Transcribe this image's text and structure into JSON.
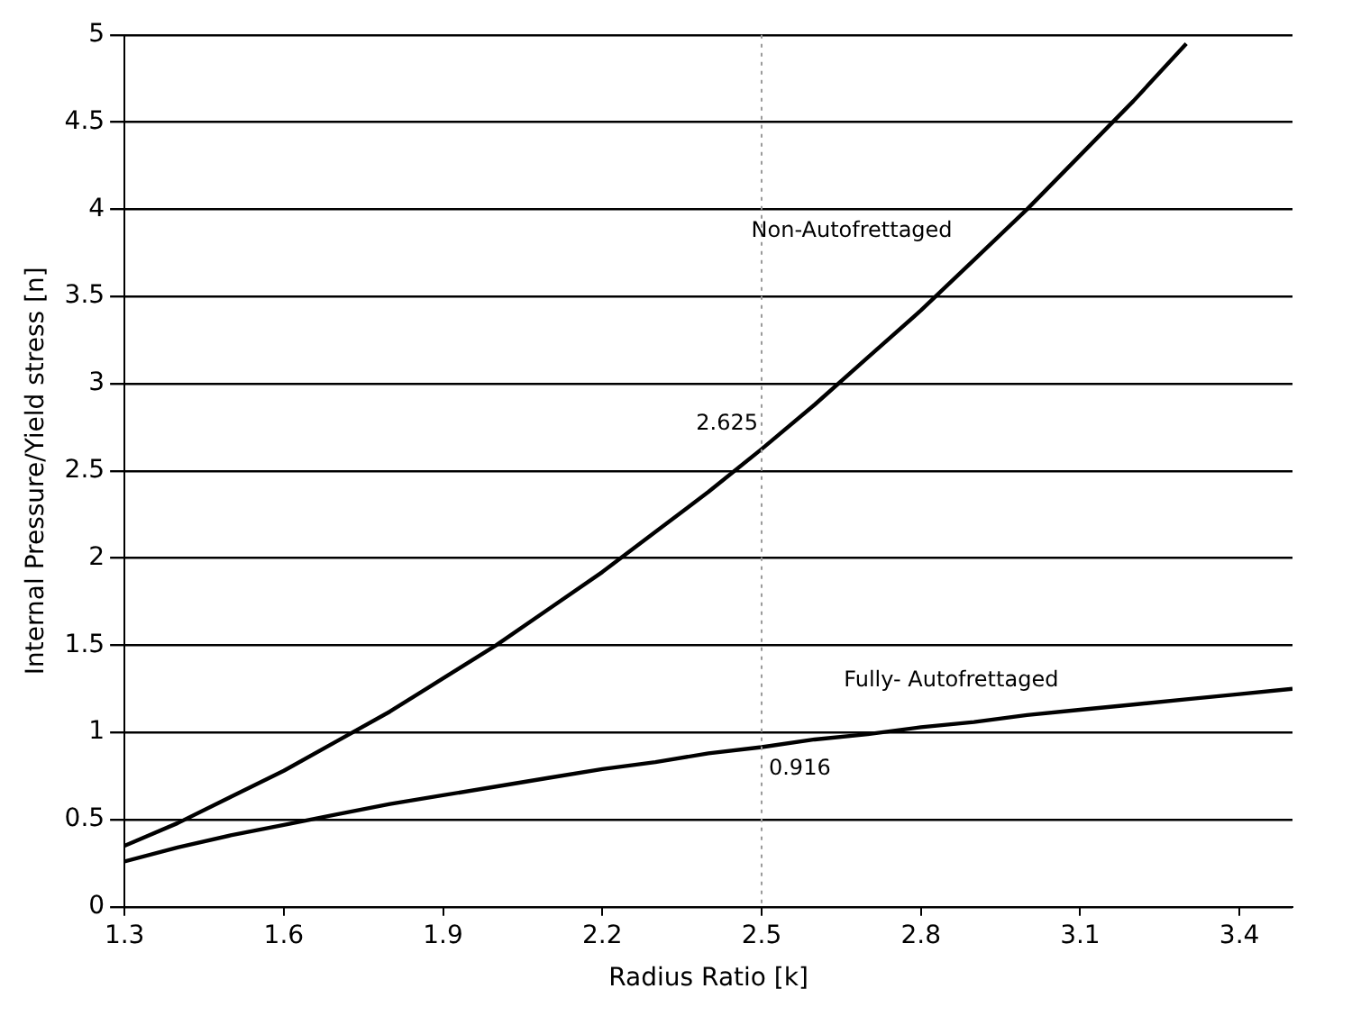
{
  "chart_data": {
    "type": "line",
    "xlabel": "Radius Ratio [k]",
    "ylabel": "Internal Pressure/Yield stress [n]",
    "xlim": [
      1.3,
      3.5
    ],
    "xticks": [
      1.3,
      1.6,
      1.9,
      2.2,
      2.5,
      2.8,
      3.1,
      3.4
    ],
    "ylim": [
      0,
      5
    ],
    "yticks": [
      0,
      0.5,
      1,
      1.5,
      2,
      2.5,
      3,
      3.5,
      4,
      4.5,
      5
    ],
    "grid": "y",
    "marker": "none",
    "line_style": "solid",
    "legend": false,
    "series": [
      {
        "name": "Non-Autofrettaged",
        "color": "#000000",
        "x": [
          1.3,
          1.4,
          1.5,
          1.6,
          1.7,
          1.8,
          1.9,
          2.0,
          2.1,
          2.2,
          2.3,
          2.4,
          2.5,
          2.6,
          2.7,
          2.8,
          2.9,
          3.0,
          3.1,
          3.2,
          3.3
        ],
        "values": [
          0.35,
          0.48,
          0.63,
          0.78,
          0.95,
          1.12,
          1.31,
          1.5,
          1.71,
          1.92,
          2.15,
          2.38,
          2.625,
          2.88,
          3.15,
          3.42,
          3.71,
          4.0,
          4.31,
          4.62,
          4.95
        ]
      },
      {
        "name": "Fully- Autofrettaged",
        "color": "#000000",
        "x": [
          1.3,
          1.4,
          1.5,
          1.6,
          1.7,
          1.8,
          1.9,
          2.0,
          2.1,
          2.2,
          2.3,
          2.4,
          2.5,
          2.6,
          2.7,
          2.8,
          2.9,
          3.0,
          3.1,
          3.2,
          3.3,
          3.4,
          3.5
        ],
        "values": [
          0.26,
          0.34,
          0.41,
          0.47,
          0.53,
          0.59,
          0.64,
          0.69,
          0.74,
          0.79,
          0.83,
          0.88,
          0.916,
          0.96,
          0.99,
          1.03,
          1.06,
          1.1,
          1.13,
          1.16,
          1.19,
          1.22,
          1.25
        ]
      }
    ],
    "ref_lines": [
      {
        "axis": "x",
        "value": 2.5,
        "color": "#999999",
        "line_style": "dotted"
      }
    ],
    "annotations": [
      {
        "text": "2.625",
        "x": 2.5,
        "y": 2.625
      },
      {
        "text": "0.916",
        "x": 2.5,
        "y": 0.916
      }
    ]
  }
}
